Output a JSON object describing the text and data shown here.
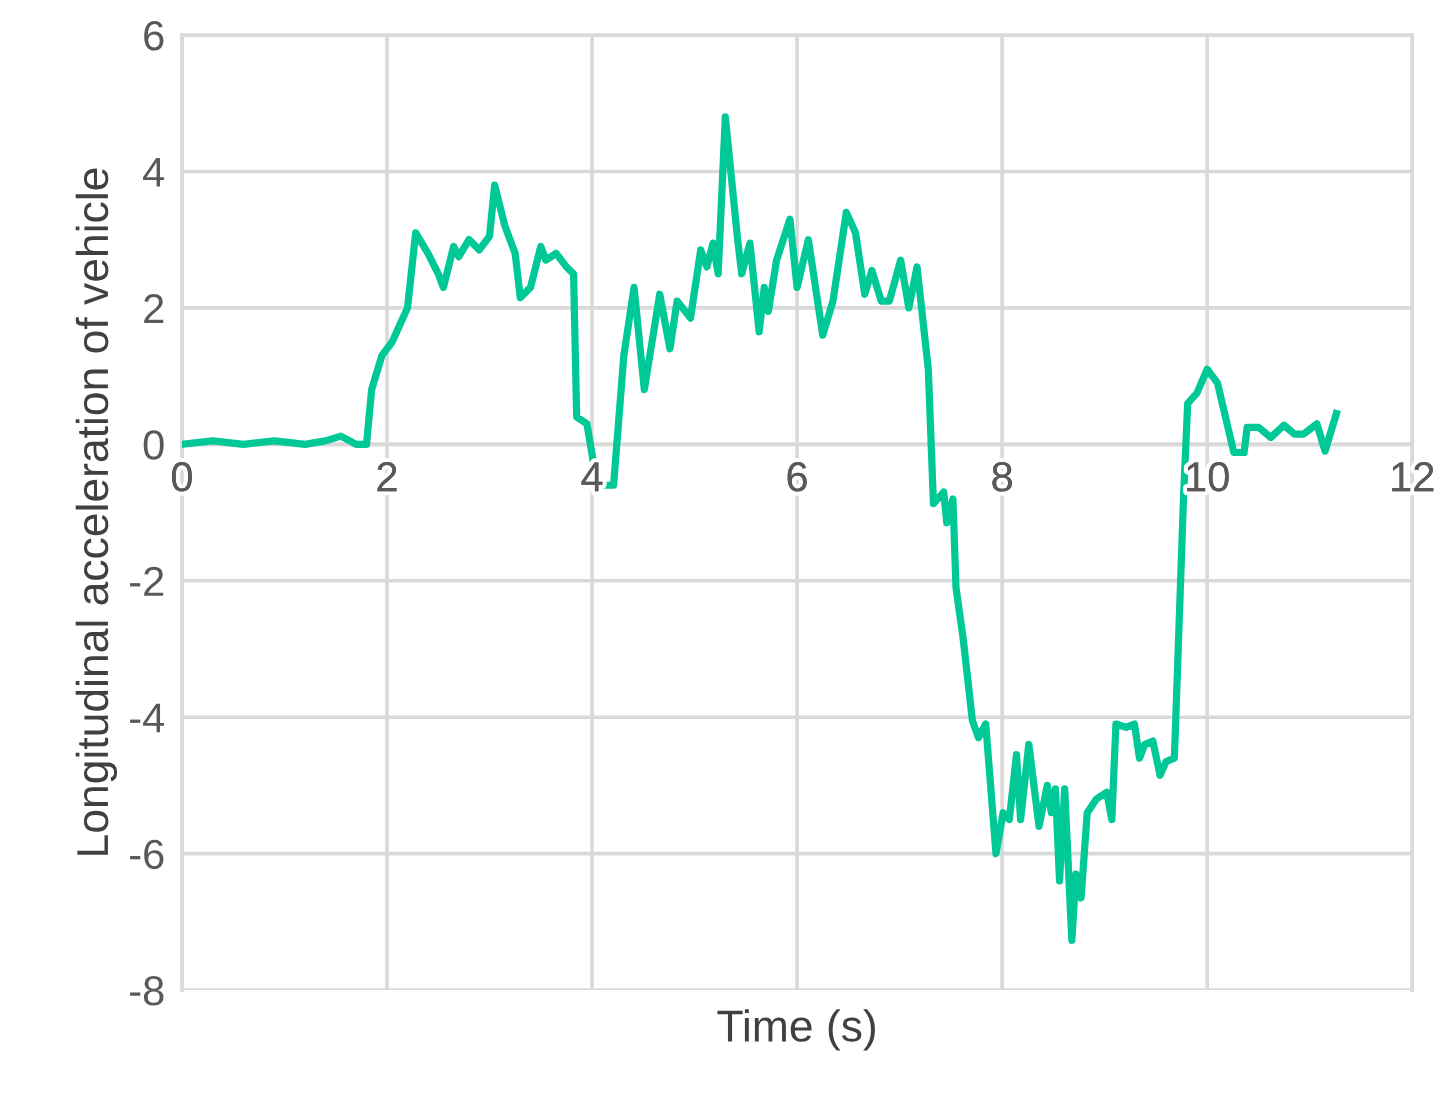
{
  "chart_data": {
    "type": "line",
    "xlabel": "Time (s)",
    "ylabel": "Longitudinal acceleration of vehicle",
    "xlim": [
      0,
      12
    ],
    "xticks": [
      0,
      2,
      4,
      6,
      8,
      10,
      12
    ],
    "ylim": [
      -8,
      6
    ],
    "yticks": [
      -8,
      -6,
      -4,
      -2,
      0,
      2,
      4,
      6
    ],
    "grid": true,
    "marker": "none",
    "line_style": "solid",
    "series": [
      {
        "color": "#00c896",
        "x": [
          0,
          0.3,
          0.6,
          0.9,
          1.2,
          1.4,
          1.55,
          1.7,
          1.8,
          1.85,
          1.95,
          2.05,
          2.2,
          2.28,
          2.4,
          2.5,
          2.55,
          2.65,
          2.7,
          2.8,
          2.9,
          3.0,
          3.05,
          3.15,
          3.25,
          3.3,
          3.4,
          3.5,
          3.55,
          3.65,
          3.75,
          3.82,
          3.85,
          3.95,
          4.05,
          4.21,
          4.31,
          4.41,
          4.51,
          4.66,
          4.76,
          4.83,
          4.96,
          5.06,
          5.12,
          5.18,
          5.23,
          5.3,
          5.42,
          5.46,
          5.54,
          5.63,
          5.68,
          5.72,
          5.8,
          5.93,
          6.0,
          6.11,
          6.25,
          6.35,
          6.48,
          6.57,
          6.66,
          6.73,
          6.82,
          6.9,
          7.01,
          7.09,
          7.17,
          7.28,
          7.33,
          7.43,
          7.46,
          7.52,
          7.55,
          7.62,
          7.71,
          7.77,
          7.84,
          7.94,
          8.01,
          8.07,
          8.14,
          8.18,
          8.26,
          8.36,
          8.44,
          8.48,
          8.52,
          8.56,
          8.61,
          8.68,
          8.72,
          8.77,
          8.83,
          8.92,
          9.02,
          9.07,
          9.11,
          9.21,
          9.29,
          9.34,
          9.39,
          9.47,
          9.54,
          9.6,
          9.68,
          9.77,
          9.81,
          9.9,
          10.0,
          10.1,
          10.26,
          10.36,
          10.39,
          10.5,
          10.62,
          10.75,
          10.85,
          10.94,
          11.07,
          11.15,
          11.26
        ],
        "values": [
          0,
          0.05,
          0.0,
          0.05,
          0.0,
          0.05,
          0.12,
          0.0,
          0.0,
          0.8,
          1.3,
          1.5,
          2.0,
          3.1,
          2.8,
          2.5,
          2.3,
          2.9,
          2.75,
          3.0,
          2.85,
          3.05,
          3.8,
          3.2,
          2.8,
          2.15,
          2.3,
          2.9,
          2.7,
          2.8,
          2.6,
          2.5,
          0.4,
          0.3,
          -0.6,
          -0.6,
          1.3,
          2.3,
          0.8,
          2.2,
          1.4,
          2.1,
          1.85,
          2.85,
          2.6,
          2.95,
          2.5,
          4.8,
          3.0,
          2.5,
          2.95,
          1.65,
          2.3,
          1.95,
          2.7,
          3.3,
          2.3,
          3.0,
          1.6,
          2.1,
          3.4,
          3.1,
          2.2,
          2.55,
          2.1,
          2.1,
          2.7,
          2.0,
          2.6,
          1.1,
          -0.87,
          -0.7,
          -1.15,
          -0.8,
          -2.1,
          -2.85,
          -4.05,
          -4.3,
          -4.1,
          -6.0,
          -5.4,
          -5.5,
          -4.55,
          -5.5,
          -4.4,
          -5.6,
          -5.0,
          -5.4,
          -5.05,
          -6.4,
          -5.05,
          -7.27,
          -6.3,
          -6.65,
          -5.4,
          -5.2,
          -5.1,
          -5.5,
          -4.1,
          -4.15,
          -4.1,
          -4.6,
          -4.4,
          -4.35,
          -4.85,
          -4.65,
          -4.6,
          -0.75,
          0.6,
          0.75,
          1.1,
          0.9,
          -0.12,
          -0.12,
          0.25,
          0.25,
          0.1,
          0.28,
          0.15,
          0.15,
          0.3,
          -0.1,
          0.45
        ]
      }
    ]
  }
}
